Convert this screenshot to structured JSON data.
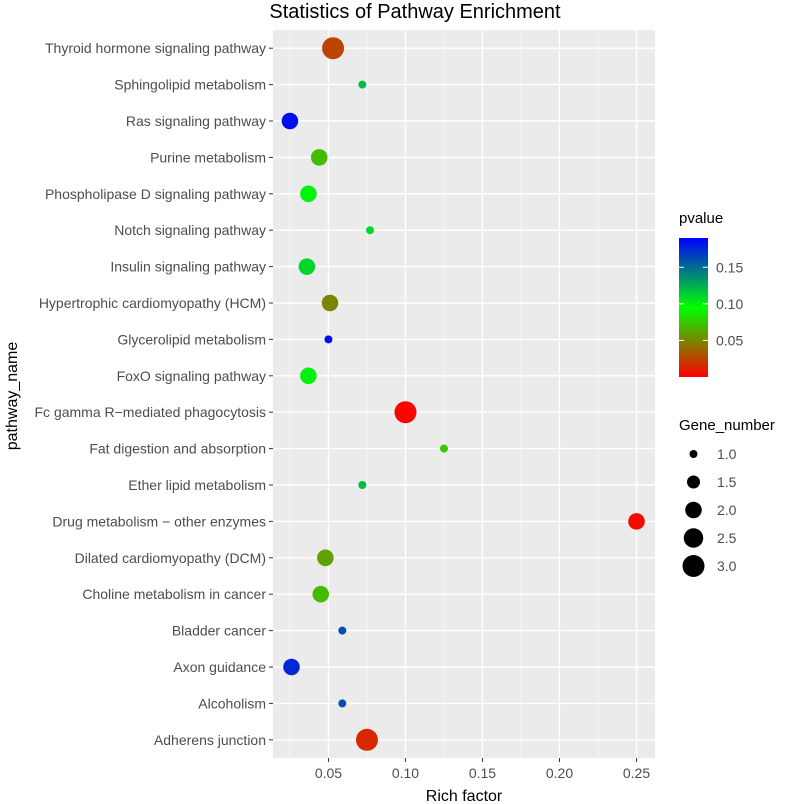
{
  "chart_data": {
    "type": "scatter",
    "title": "Statistics of Pathway Enrichment",
    "xlabel": "Rich factor",
    "ylabel": "pathway_name",
    "xlim": [
      0.014,
      0.262
    ],
    "xticks": [
      0.05,
      0.1,
      0.15,
      0.2,
      0.25
    ],
    "xtick_labels": [
      "0.05",
      "0.10",
      "0.15",
      "0.20",
      "0.25"
    ],
    "categories": [
      "Adherens junction",
      "Alcoholism",
      "Axon guidance",
      "Bladder cancer",
      "Choline metabolism in cancer",
      "Dilated cardiomyopathy (DCM)",
      "Drug metabolism − other enzymes",
      "Ether lipid metabolism",
      "Fat digestion and absorption",
      "Fc gamma R−mediated phagocytosis",
      "FoxO signaling pathway",
      "Glycerolipid metabolism",
      "Hypertrophic cardiomyopathy (HCM)",
      "Insulin signaling pathway",
      "Notch signaling pathway",
      "Phospholipase D signaling pathway",
      "Purine metabolism",
      "Ras signaling pathway",
      "Sphingolipid metabolism",
      "Thyroid hormone signaling pathway"
    ],
    "points": [
      {
        "pathway": "Adherens junction",
        "rich_factor": 0.075,
        "pvalue": 0.015,
        "gene_number": 3
      },
      {
        "pathway": "Alcoholism",
        "rich_factor": 0.059,
        "pvalue": 0.16,
        "gene_number": 1
      },
      {
        "pathway": "Axon guidance",
        "rich_factor": 0.026,
        "pvalue": 0.175,
        "gene_number": 2
      },
      {
        "pathway": "Bladder cancer",
        "rich_factor": 0.059,
        "pvalue": 0.16,
        "gene_number": 1
      },
      {
        "pathway": "Choline metabolism in cancer",
        "rich_factor": 0.045,
        "pvalue": 0.07,
        "gene_number": 2
      },
      {
        "pathway": "Dilated cardiomyopathy (DCM)",
        "rich_factor": 0.048,
        "pvalue": 0.06,
        "gene_number": 2
      },
      {
        "pathway": "Drug metabolism − other enzymes",
        "rich_factor": 0.25,
        "pvalue": 0.003,
        "gene_number": 2
      },
      {
        "pathway": "Ether lipid metabolism",
        "rich_factor": 0.072,
        "pvalue": 0.12,
        "gene_number": 1
      },
      {
        "pathway": "Fat digestion and absorption",
        "rich_factor": 0.125,
        "pvalue": 0.075,
        "gene_number": 1
      },
      {
        "pathway": "Fc gamma R−mediated phagocytosis",
        "rich_factor": 0.1,
        "pvalue": 0.002,
        "gene_number": 3
      },
      {
        "pathway": "FoxO signaling pathway",
        "rich_factor": 0.037,
        "pvalue": 0.1,
        "gene_number": 2
      },
      {
        "pathway": "Glycerolipid metabolism",
        "rich_factor": 0.05,
        "pvalue": 0.185,
        "gene_number": 1
      },
      {
        "pathway": "Hypertrophic cardiomyopathy (HCM)",
        "rich_factor": 0.051,
        "pvalue": 0.05,
        "gene_number": 2
      },
      {
        "pathway": "Insulin signaling pathway",
        "rich_factor": 0.036,
        "pvalue": 0.11,
        "gene_number": 2
      },
      {
        "pathway": "Notch signaling pathway",
        "rich_factor": 0.077,
        "pvalue": 0.11,
        "gene_number": 1
      },
      {
        "pathway": "Phospholipase D signaling pathway",
        "rich_factor": 0.037,
        "pvalue": 0.1,
        "gene_number": 2
      },
      {
        "pathway": "Purine metabolism",
        "rich_factor": 0.044,
        "pvalue": 0.07,
        "gene_number": 2
      },
      {
        "pathway": "Ras signaling pathway",
        "rich_factor": 0.025,
        "pvalue": 0.185,
        "gene_number": 2
      },
      {
        "pathway": "Sphingolipid metabolism",
        "rich_factor": 0.072,
        "pvalue": 0.12,
        "gene_number": 1
      },
      {
        "pathway": "Thyroid hormone signaling pathway",
        "rich_factor": 0.053,
        "pvalue": 0.025,
        "gene_number": 3
      }
    ],
    "legend_color": {
      "title": "pvalue",
      "ticks": [
        0.05,
        0.1,
        0.15
      ],
      "tick_labels": [
        "0.05",
        "0.10",
        "0.15"
      ],
      "range": [
        0.0,
        0.19
      ],
      "low_color": "#ff0000",
      "mid_color": "#00ff00",
      "high_color": "#0000ff"
    },
    "legend_size": {
      "title": "Gene_number",
      "values": [
        1.0,
        1.5,
        2.0,
        2.5,
        3.0
      ],
      "labels": [
        "1.0",
        "1.5",
        "2.0",
        "2.5",
        "3.0"
      ]
    },
    "colors": {
      "panel_background": "#ebebeb",
      "grid_major": "#ffffff",
      "text": "#4d4d4d",
      "title": "#000000"
    },
    "grid": true
  }
}
